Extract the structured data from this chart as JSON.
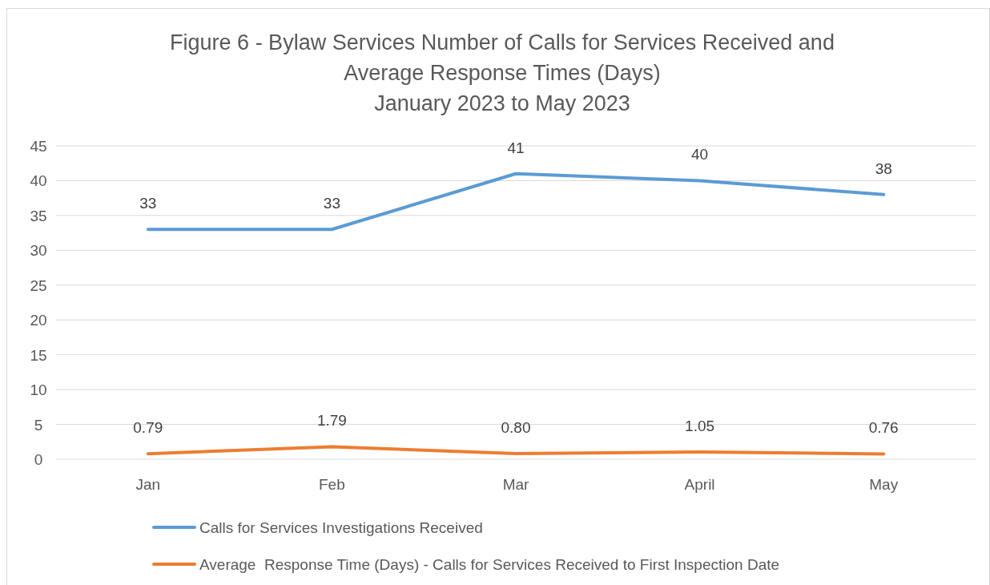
{
  "chart_data": {
    "type": "line",
    "title": "Figure 6 - Bylaw Services Number of Calls for Services Received and Average Response Times (Days)",
    "subtitle": "January 2023 to May 2023",
    "categories": [
      "Jan",
      "Feb",
      "Mar",
      "April",
      "May"
    ],
    "series": [
      {
        "name": "Calls for Services Investigations Received",
        "color": "#5b9bd5",
        "values": [
          33,
          33,
          41,
          40,
          38
        ],
        "value_labels": [
          "33",
          "33",
          "41",
          "40",
          "38"
        ]
      },
      {
        "name": "Average  Response Time (Days) - Calls for Services Received to First Inspection Date",
        "color": "#ed7d31",
        "values": [
          0.79,
          1.79,
          0.8,
          1.05,
          0.76
        ],
        "value_labels": [
          "0.79",
          "1.79",
          "0.80",
          "1.05",
          "0.76"
        ]
      }
    ],
    "ylim": [
      0,
      45
    ],
    "yticks": [
      0,
      5,
      10,
      15,
      20,
      25,
      30,
      35,
      40,
      45
    ],
    "grid": "y",
    "legend": "bottom",
    "marker": "none",
    "line_style": "solid"
  }
}
